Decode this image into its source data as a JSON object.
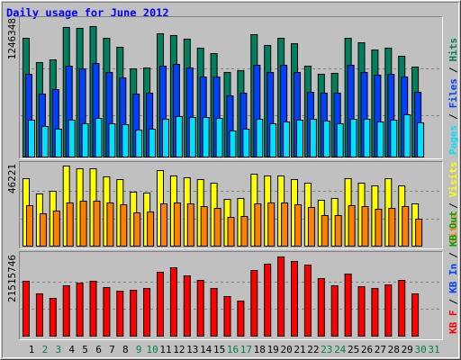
{
  "separator": "/",
  "chart_data": [
    {
      "type": "bar",
      "title": "Daily usage for June 2012",
      "ylim": [
        0,
        1246348
      ],
      "yticks": [
        1246348
      ],
      "series": [
        {
          "name": "Hits",
          "color": "#00805c",
          "values": [
            1068300,
            849800,
            874100,
            1165400,
            1157300,
            1173500,
            1068300,
            987400,
            793100,
            801200,
            1108800,
            1092600,
            1060200,
            979300,
            930700,
            760800,
            776900,
            1100700,
            1003600,
            1068300,
            1019700,
            817400,
            744600,
            752700,
            1068300,
            1027800,
            963100,
            979300,
            906400,
            809300,
            null
          ]
        },
        {
          "name": "Files",
          "color": "#0040ff",
          "values": [
            744600,
            566500,
            607000,
            817400,
            793100,
            841700,
            760800,
            712200,
            566500,
            574600,
            817400,
            833600,
            801200,
            720300,
            720300,
            550300,
            574600,
            825500,
            760800,
            825500,
            760800,
            582700,
            574600,
            574600,
            825500,
            760800,
            736500,
            744600,
            720300,
            582700,
            null
          ]
        },
        {
          "name": "Pages",
          "color": "#00e0ff",
          "values": [
            331800,
            275200,
            250900,
            331800,
            299500,
            348000,
            299500,
            291400,
            242800,
            250900,
            339900,
            364200,
            356100,
            356100,
            348000,
            234700,
            250900,
            339900,
            299500,
            315600,
            331800,
            339900,
            323700,
            299500,
            339900,
            339900,
            315600,
            331800,
            380400,
            307500,
            null
          ]
        }
      ]
    },
    {
      "type": "bar",
      "ylim": [
        0,
        46221
      ],
      "yticks": [
        46221
      ],
      "series": [
        {
          "name": "Visits",
          "color": "#ffff00",
          "values": [
            38090,
            29460,
            30980,
            45200,
            43680,
            43680,
            39110,
            37580,
            30470,
            29970,
            42660,
            39620,
            38600,
            37580,
            35550,
            26410,
            26920,
            40630,
            39620,
            39620,
            37580,
            35550,
            25900,
            26920,
            38090,
            35550,
            34030,
            38090,
            34030,
            23870,
            null
          ]
        },
        {
          "name": "Sites",
          "color": "#ff8000",
          "values": [
            22860,
            18280,
            19810,
            24380,
            25400,
            25400,
            24380,
            23360,
            18790,
            19300,
            23870,
            24380,
            23870,
            22350,
            21330,
            16250,
            16760,
            23870,
            24380,
            24380,
            23360,
            21840,
            17270,
            17270,
            22860,
            22350,
            20820,
            21330,
            22350,
            15240,
            null
          ]
        }
      ]
    },
    {
      "type": "bar",
      "ylim": [
        0,
        21515746
      ],
      "yticks": [
        21515746
      ],
      "categories": [
        "1",
        "2",
        "3",
        "4",
        "5",
        "6",
        "7",
        "8",
        "9",
        "10",
        "11",
        "12",
        "13",
        "14",
        "15",
        "16",
        "17",
        "18",
        "19",
        "20",
        "21",
        "22",
        "23",
        "24",
        "25",
        "26",
        "27",
        "28",
        "29",
        "30",
        "31"
      ],
      "category_colors": [
        "#000000",
        "#008040",
        "#008040",
        "#000000",
        "#000000",
        "#000000",
        "#000000",
        "#000000",
        "#008040",
        "#008040",
        "#000000",
        "#000000",
        "#000000",
        "#000000",
        "#000000",
        "#008040",
        "#008040",
        "#000000",
        "#000000",
        "#000000",
        "#000000",
        "#000000",
        "#008040",
        "#008040",
        "#000000",
        "#000000",
        "#000000",
        "#000000",
        "#000000",
        "#008040",
        "#008040"
      ],
      "series": [
        {
          "name": "KB F",
          "color": "#ff0000",
          "values": [
            14582900,
            11236000,
            10040700,
            13387600,
            14104800,
            14582900,
            12909500,
            11953200,
            12192300,
            12670400,
            16973500,
            18168900,
            16017300,
            14822000,
            12670400,
            10518800,
            9323500,
            17451700,
            19125100,
            21037600,
            19842300,
            18886100,
            15300100,
            13387600,
            16495400,
            13148500,
            12670400,
            13626600,
            14822000,
            11236000,
            null
          ]
        }
      ],
      "legend_extra": [
        {
          "name": "KB In",
          "color": "#0040ff"
        },
        {
          "name": "KB Out",
          "color": "#00a000"
        }
      ]
    }
  ]
}
